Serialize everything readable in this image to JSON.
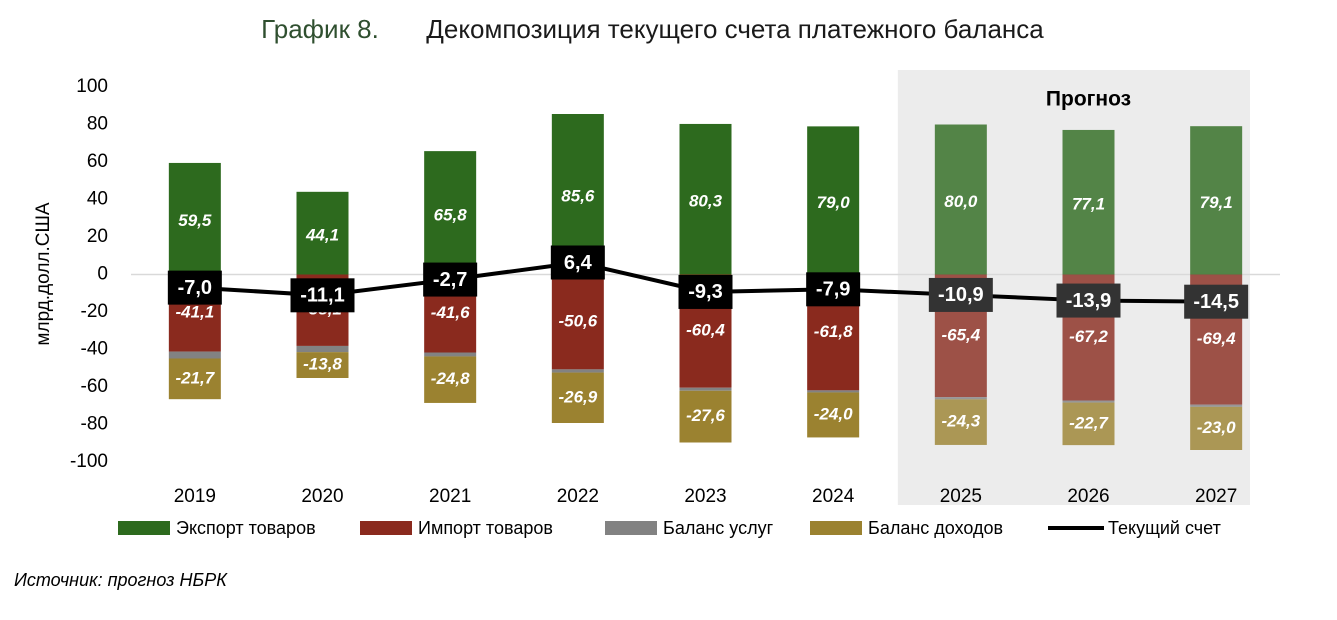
{
  "chart_data": {
    "type": "bar",
    "title_number": "График 8.",
    "title": "Декомпозиция текущего счета платежного баланса",
    "y_label": "млрд.долл.США",
    "source": "Источник: прогноз НБРК",
    "forecast_label": "Прогноз",
    "forecast_start": 6,
    "categories": [
      "2019",
      "2020",
      "2021",
      "2022",
      "2023",
      "2024",
      "2025",
      "2026",
      "2027"
    ],
    "ylim": [
      -100,
      100
    ],
    "yticks": [
      -100,
      -80,
      -60,
      -40,
      -20,
      0,
      20,
      40,
      60,
      80,
      100
    ],
    "grid": false,
    "legend": "bottom",
    "series": [
      {
        "name": "Экспорт товаров",
        "color": "#2d6a1e",
        "values": [
          59.5,
          44.1,
          65.8,
          85.6,
          80.3,
          79.0,
          80.0,
          77.1,
          79.1
        ],
        "value_labels": [
          "59,5",
          "44,1",
          "65,8",
          "85,6",
          "80,3",
          "79,0",
          "80,0",
          "77,1",
          "79,1"
        ]
      },
      {
        "name": "Импорт товаров",
        "color": "#8a2a1e",
        "values": [
          -41.1,
          -38.1,
          -41.6,
          -50.6,
          -60.4,
          -61.8,
          -65.4,
          -67.2,
          -69.4
        ],
        "value_labels": [
          "-41,1",
          "-38,1",
          "-41,6",
          "-50,6",
          "-60,4",
          "-61,8",
          "-65,4",
          "-67,2",
          "-69,4"
        ]
      },
      {
        "name": "Баланс услуг",
        "color": "#828282",
        "values": [
          -3.7,
          -3.3,
          -2.1,
          -1.7,
          -1.6,
          -1.1,
          -1.2,
          -1.1,
          -1.2
        ]
      },
      {
        "name": "Баланс доходов",
        "color": "#9b8230",
        "values": [
          -21.7,
          -13.8,
          -24.8,
          -26.9,
          -27.6,
          -24.0,
          -24.3,
          -22.7,
          -23.0
        ],
        "value_labels": [
          "-21,7",
          "-13,8",
          "-24,8",
          "-26,9",
          "-27,6",
          "-24,0",
          "-24,3",
          "-22,7",
          "-23,0"
        ]
      },
      {
        "name": "Текущий счет",
        "type": "line",
        "color": "#000000",
        "values": [
          -7.0,
          -11.1,
          -2.7,
          6.4,
          -9.3,
          -7.9,
          -10.9,
          -13.9,
          -14.5
        ],
        "value_labels": [
          "-7,0",
          "-11,1",
          "-2,7",
          "6,4",
          "-9,3",
          "-7,9",
          "-10,9",
          "-13,9",
          "-14,5"
        ]
      }
    ]
  }
}
